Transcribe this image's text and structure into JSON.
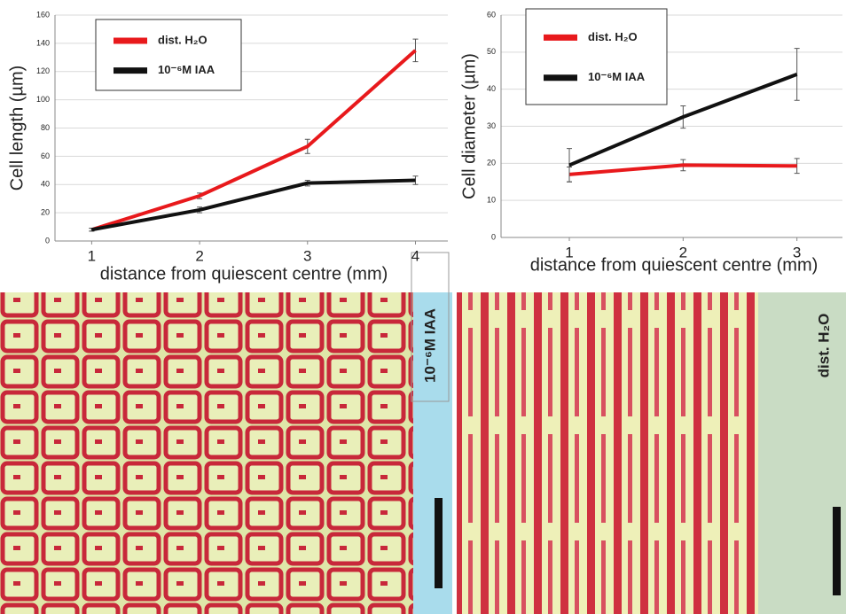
{
  "chart_data": [
    {
      "type": "line",
      "x": [
        1,
        2,
        3,
        4
      ],
      "xlim": [
        0.66,
        4.3
      ],
      "xticks": [
        1,
        2,
        3,
        4
      ],
      "ylim": [
        0,
        160
      ],
      "yticks": [
        0,
        20,
        40,
        60,
        80,
        100,
        120,
        140,
        160
      ],
      "grid": true,
      "y_label": "Cell length (µm)",
      "x_label": "distance from quiescent centre (mm)",
      "series": [
        {
          "name": "dist. H₂O",
          "color": "#e8191c",
          "values": [
            8,
            32,
            67,
            135
          ],
          "errors": [
            1,
            2,
            5,
            8
          ]
        },
        {
          "name": "10⁻⁶M IAA",
          "color": "#111111",
          "values": [
            8,
            22,
            41,
            43
          ],
          "errors": [
            1,
            2,
            2,
            3
          ]
        }
      ]
    },
    {
      "type": "line",
      "x": [
        1,
        2,
        3
      ],
      "xlim": [
        0.4,
        3.4
      ],
      "xticks": [
        1,
        2,
        3
      ],
      "ylim": [
        0,
        60
      ],
      "yticks": [
        0,
        10,
        20,
        30,
        40,
        50,
        60
      ],
      "grid": true,
      "y_label": "Cell diameter (µm)",
      "x_label": "distance from quiescent centre (mm)",
      "series": [
        {
          "name": "dist. H₂O",
          "color": "#e8191c",
          "values": [
            17,
            19.5,
            19.3
          ],
          "errors": [
            2,
            1.5,
            2
          ]
        },
        {
          "name": "10⁻⁶M IAA",
          "color": "#111111",
          "values": [
            19.5,
            32.5,
            44
          ],
          "errors": [
            4.5,
            3,
            7
          ]
        }
      ]
    }
  ],
  "panels": [
    {
      "label": "10⁻⁶M IAA"
    },
    {
      "label": "dist. H₂O"
    }
  ]
}
